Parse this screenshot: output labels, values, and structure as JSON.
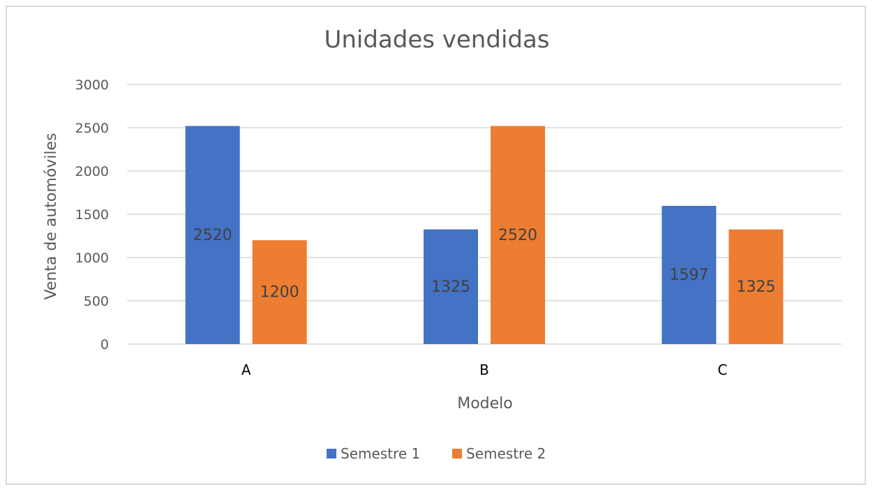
{
  "chart_data": {
    "type": "bar",
    "title": "Unidades vendidas",
    "xlabel": "Modelo",
    "ylabel": "Venta de automóviles",
    "categories": [
      "A",
      "B",
      "C"
    ],
    "series": [
      {
        "name": "Semestre 1",
        "values": [
          2520,
          1325,
          1597
        ],
        "labels": [
          "2520",
          "1325",
          "1597"
        ],
        "color": "#4472C4"
      },
      {
        "name": "Semestre 2",
        "values": [
          1200,
          2520,
          1325
        ],
        "labels": [
          "1200",
          "2520",
          "1325"
        ],
        "color": "#ED7D31"
      }
    ],
    "ylim": [
      0,
      3000
    ],
    "yticks": [
      0,
      500,
      1000,
      1500,
      2000,
      2500,
      3000
    ],
    "ytick_labels": [
      "0",
      "500",
      "1000",
      "1500",
      "2000",
      "2500",
      "3000"
    ],
    "grid": true,
    "gridline_color": "#d9d9d9",
    "legend_position": "bottom"
  }
}
